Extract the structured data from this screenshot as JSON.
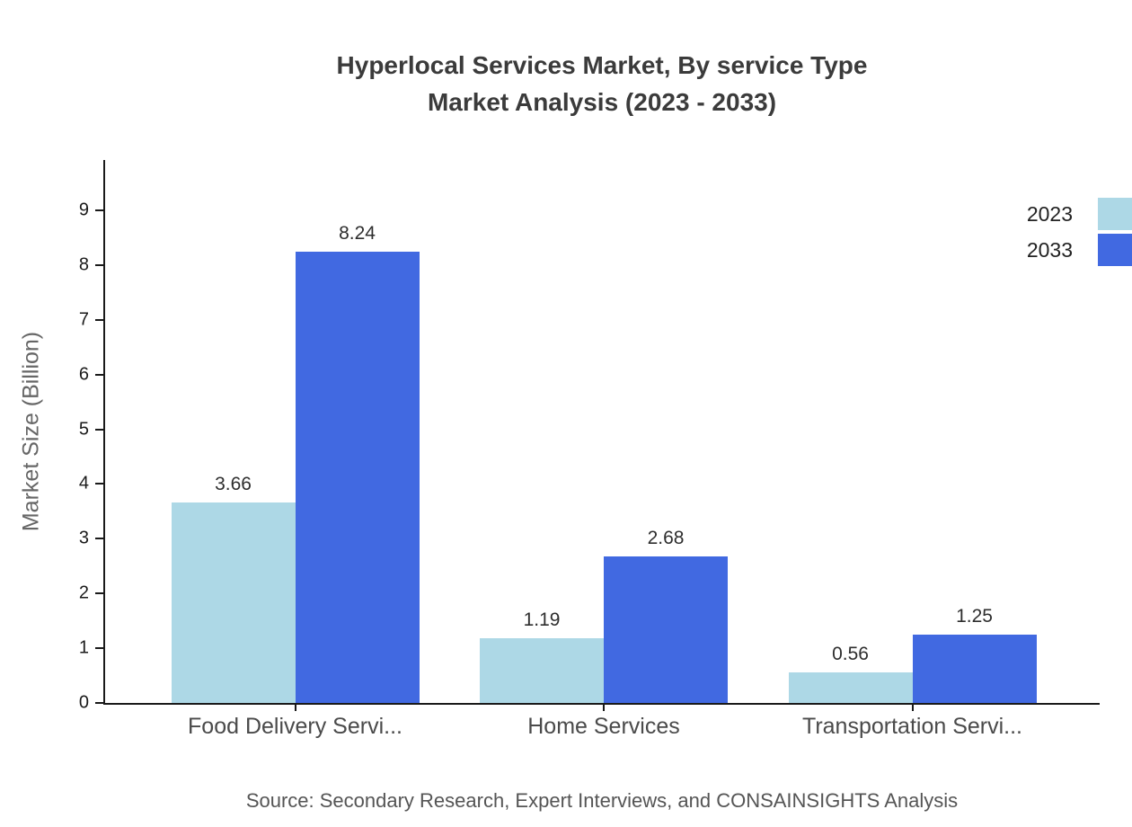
{
  "title": {
    "line1": "Hyperlocal Services Market, By service Type",
    "line2": "Market Analysis (2023 - 2033)"
  },
  "y_axis_label": "Market Size (Billion)",
  "source": "Source: Secondary Research, Expert Interviews, and CONSAINSIGHTS Analysis",
  "legend": [
    {
      "label": "2023",
      "color": "#ADD8E6"
    },
    {
      "label": "2033",
      "color": "#4169E1"
    }
  ],
  "colors": {
    "axis": "#1a1a1a",
    "series_2023": "#ADD8E6",
    "series_2033": "#4169E1"
  },
  "chart_data": {
    "type": "bar",
    "title": "Hyperlocal Services Market, By service Type Market Analysis (2023 - 2033)",
    "categories": [
      "Food Delivery Servi...",
      "Home Services",
      "Transportation Servi..."
    ],
    "series": [
      {
        "name": "2023",
        "color": "#ADD8E6",
        "values": [
          3.66,
          1.19,
          0.56
        ]
      },
      {
        "name": "2033",
        "color": "#4169E1",
        "values": [
          8.24,
          2.68,
          1.25
        ]
      }
    ],
    "value_labels": [
      "3.66",
      "8.24",
      "1.19",
      "2.68",
      "0.56",
      "1.25"
    ],
    "xlabel": "",
    "ylabel": "Market Size (Billion)",
    "ylim": [
      0,
      9.9
    ],
    "yticks": [
      0,
      1,
      2,
      3,
      4,
      5,
      6,
      7,
      8,
      9
    ],
    "grid": false,
    "legend_position": "top-right"
  }
}
